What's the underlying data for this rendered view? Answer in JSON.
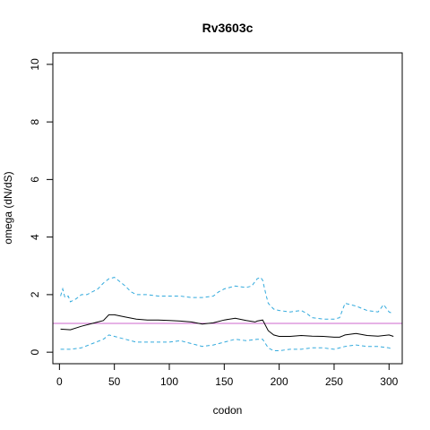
{
  "chart_data": {
    "type": "line",
    "title": "Rv3603c",
    "xlabel": "codon",
    "ylabel": "omega (dN/dS)",
    "xlim": [
      -6,
      312
    ],
    "ylim": [
      -0.4,
      10.4
    ],
    "x_ticks": [
      0,
      50,
      100,
      150,
      200,
      250,
      300
    ],
    "y_ticks": [
      0,
      2,
      4,
      6,
      8,
      10
    ],
    "x_tick_labels": [
      "0",
      "50",
      "100",
      "150",
      "200",
      "250",
      "300"
    ],
    "y_tick_labels": [
      "0",
      "2",
      "4",
      "6",
      "8",
      "10"
    ],
    "grid": false,
    "reference_line": {
      "y": 1,
      "color": "#cc66cc"
    },
    "series": [
      {
        "role": "estimate",
        "style": "solid",
        "color": "#000000",
        "x": [
          1,
          10,
          20,
          30,
          40,
          45,
          50,
          60,
          70,
          80,
          90,
          100,
          110,
          120,
          130,
          140,
          150,
          160,
          170,
          178,
          180,
          185,
          190,
          195,
          200,
          210,
          220,
          230,
          240,
          250,
          255,
          260,
          270,
          280,
          290,
          300,
          304
        ],
        "y": [
          0.8,
          0.78,
          0.9,
          1.0,
          1.1,
          1.3,
          1.3,
          1.22,
          1.15,
          1.12,
          1.12,
          1.1,
          1.08,
          1.05,
          0.98,
          1.02,
          1.12,
          1.18,
          1.1,
          1.05,
          1.08,
          1.12,
          0.75,
          0.6,
          0.55,
          0.55,
          0.58,
          0.56,
          0.55,
          0.52,
          0.52,
          0.6,
          0.65,
          0.58,
          0.56,
          0.6,
          0.55
        ]
      },
      {
        "role": "upper",
        "style": "dashed",
        "color": "#33aadd",
        "x": [
          1,
          3,
          5,
          8,
          10,
          15,
          20,
          25,
          30,
          35,
          40,
          45,
          50,
          55,
          60,
          65,
          70,
          80,
          90,
          100,
          110,
          120,
          130,
          140,
          145,
          150,
          160,
          170,
          175,
          180,
          183,
          185,
          188,
          190,
          195,
          200,
          210,
          220,
          225,
          230,
          240,
          250,
          255,
          260,
          265,
          270,
          280,
          290,
          295,
          300,
          303
        ],
        "y": [
          1.95,
          2.2,
          1.9,
          1.95,
          1.75,
          1.85,
          2.0,
          2.0,
          2.1,
          2.2,
          2.4,
          2.55,
          2.6,
          2.45,
          2.3,
          2.1,
          2.0,
          2.0,
          1.95,
          1.95,
          1.95,
          1.9,
          1.9,
          1.95,
          2.1,
          2.2,
          2.3,
          2.25,
          2.3,
          2.55,
          2.6,
          2.5,
          2.0,
          1.7,
          1.5,
          1.45,
          1.4,
          1.45,
          1.35,
          1.2,
          1.15,
          1.15,
          1.2,
          1.7,
          1.65,
          1.6,
          1.45,
          1.4,
          1.65,
          1.4,
          1.35
        ]
      },
      {
        "role": "lower",
        "style": "dashed",
        "color": "#33aadd",
        "x": [
          1,
          10,
          20,
          30,
          40,
          45,
          50,
          60,
          70,
          80,
          90,
          100,
          110,
          120,
          130,
          140,
          150,
          160,
          170,
          180,
          185,
          190,
          195,
          200,
          210,
          220,
          230,
          240,
          250,
          260,
          270,
          280,
          290,
          300,
          303
        ],
        "y": [
          0.1,
          0.1,
          0.15,
          0.3,
          0.45,
          0.6,
          0.55,
          0.45,
          0.35,
          0.35,
          0.35,
          0.35,
          0.4,
          0.3,
          0.2,
          0.25,
          0.35,
          0.45,
          0.4,
          0.45,
          0.45,
          0.15,
          0.05,
          0.05,
          0.1,
          0.1,
          0.15,
          0.15,
          0.1,
          0.2,
          0.25,
          0.2,
          0.2,
          0.15,
          0.1
        ]
      }
    ]
  }
}
